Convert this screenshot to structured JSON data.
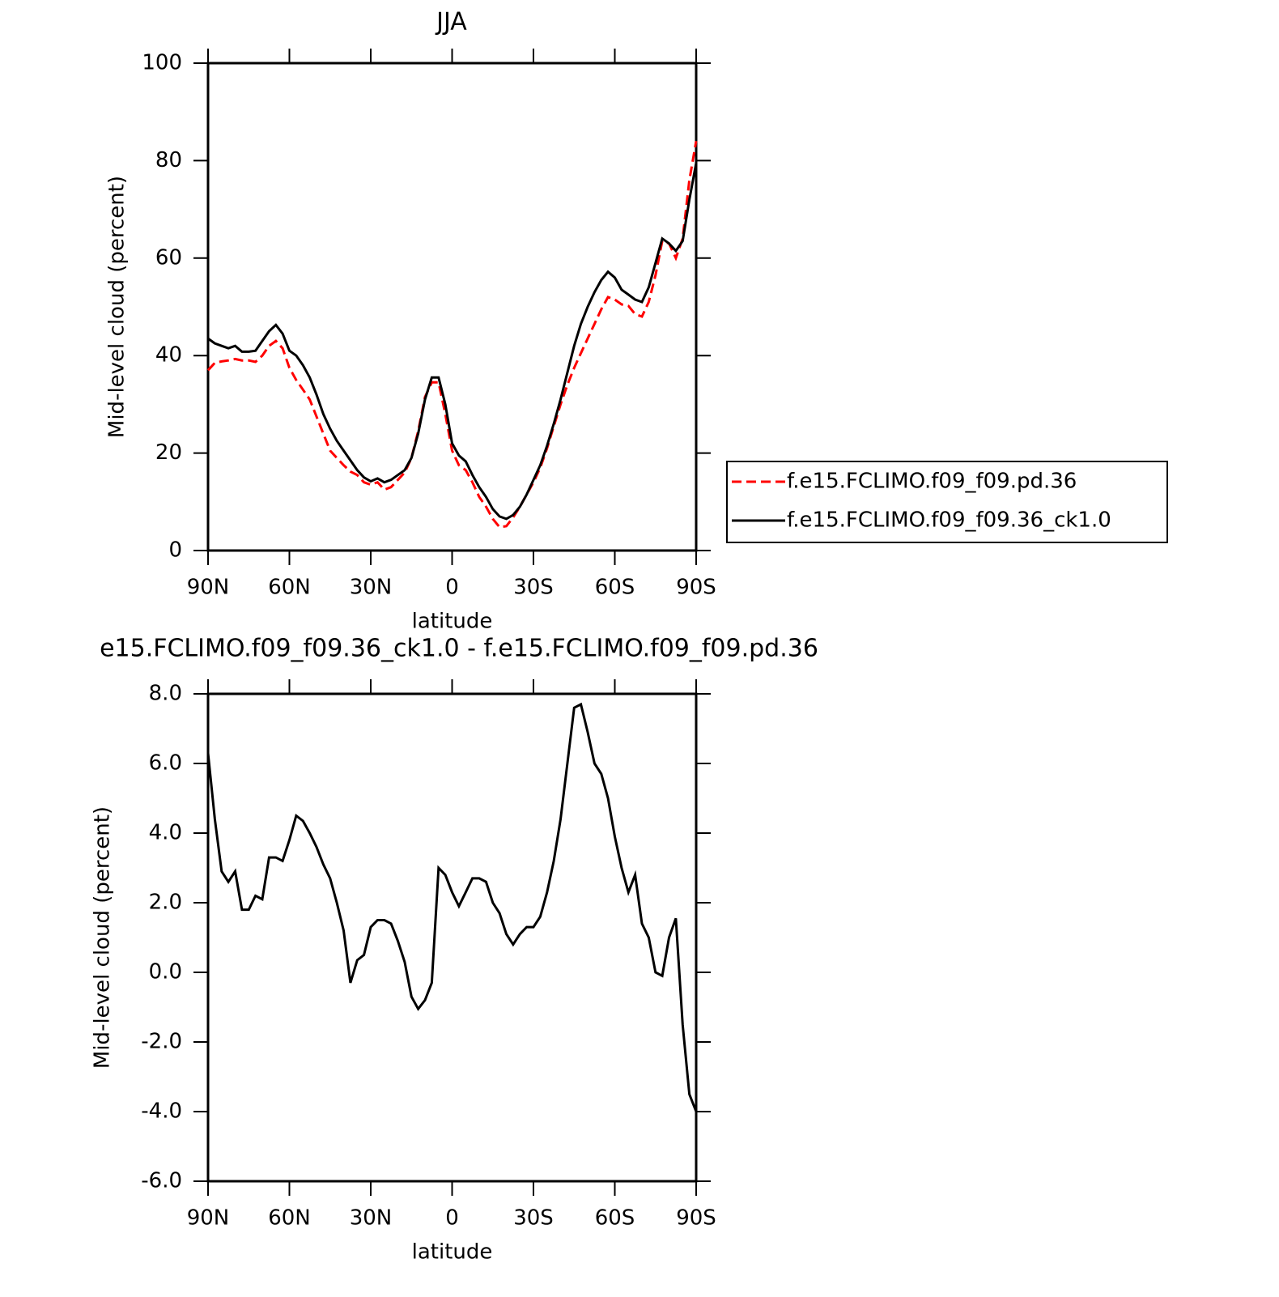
{
  "chart_data": [
    {
      "type": "line",
      "title": "JJA",
      "xlabel": "latitude",
      "ylabel": "Mid-level cloud (percent)",
      "x": [
        90,
        87.5,
        85,
        82.5,
        80,
        77.5,
        75,
        72.5,
        70,
        67.5,
        65,
        62.5,
        60,
        57.5,
        55,
        52.5,
        50,
        47.5,
        45,
        42.5,
        40,
        37.5,
        35,
        32.5,
        30,
        27.5,
        25,
        22.5,
        20,
        17.5,
        15,
        12.5,
        10,
        7.5,
        5,
        2.5,
        0,
        -2.5,
        -5,
        -7.5,
        -10,
        -12.5,
        -15,
        -17.5,
        -20,
        -22.5,
        -25,
        -27.5,
        -30,
        -32.5,
        -35,
        -37.5,
        -40,
        -42.5,
        -45,
        -47.5,
        -50,
        -52.5,
        -55,
        -57.5,
        -60,
        -62.5,
        -65,
        -67.5,
        -70,
        -72.5,
        -75,
        -77.5,
        -80,
        -82.5,
        -85,
        -87.5,
        -90
      ],
      "series": [
        {
          "name": "f.e15.FCLIMO.f09_f09.pd.36",
          "color": "#ff0000",
          "line_style": "dashed",
          "values": [
            37,
            38.5,
            38.8,
            39,
            39.3,
            39,
            39,
            38.7,
            40,
            42,
            43,
            41.5,
            37.5,
            35,
            33,
            31,
            27.5,
            24,
            20.5,
            19,
            17.5,
            16.2,
            15.5,
            14,
            13.5,
            14,
            12.5,
            13,
            14.5,
            16,
            19,
            24.5,
            31.5,
            34.5,
            34.5,
            28,
            20.5,
            17.5,
            16.5,
            14,
            11,
            9,
            6.5,
            4.8,
            5,
            6.8,
            9,
            11.5,
            14,
            17,
            21,
            25.5,
            30,
            34,
            37.5,
            40.5,
            43.5,
            46.5,
            49.5,
            52,
            51.5,
            50.5,
            50.2,
            48.5,
            48,
            51,
            56.5,
            63.5,
            63,
            60,
            64,
            76,
            84
          ]
        },
        {
          "name": "f.e15.FCLIMO.f09_f09.36_ck1.0",
          "color": "#000000",
          "line_style": "solid",
          "values": [
            43.5,
            42.5,
            42,
            41.5,
            42,
            40.8,
            40.8,
            41,
            43,
            45,
            46.3,
            44.5,
            41,
            40,
            38,
            35.5,
            32,
            28,
            25,
            22.5,
            20.5,
            18.5,
            16.5,
            15,
            14.2,
            14.8,
            14,
            14.5,
            15.5,
            16.5,
            19,
            24,
            31,
            35.5,
            35.5,
            30,
            22,
            19.5,
            18.3,
            15.5,
            13,
            11,
            8.5,
            7,
            6.5,
            7.3,
            9,
            11.5,
            14.5,
            17.5,
            21.5,
            26,
            31,
            36.5,
            42,
            46.5,
            50,
            53,
            55.5,
            57.2,
            56,
            53.5,
            52.5,
            51.5,
            51,
            54,
            59,
            64,
            63,
            61.5,
            63.5,
            72,
            79.5
          ]
        }
      ],
      "xlim": [
        90,
        -90
      ],
      "xticks": [
        {
          "value": 90,
          "label": "90N"
        },
        {
          "value": 60,
          "label": "60N"
        },
        {
          "value": 30,
          "label": "30N"
        },
        0,
        {
          "value": -30,
          "label": "30S"
        },
        {
          "value": -60,
          "label": "60S"
        },
        {
          "value": -90,
          "label": "90S"
        }
      ],
      "ylim": [
        0,
        100
      ],
      "yticks": [
        0,
        20,
        40,
        60,
        80,
        100
      ],
      "legend": "right"
    },
    {
      "type": "line",
      "title": "e15.FCLIMO.f09_f09.36_ck1.0 - f.e15.FCLIMO.f09_f09.pd.36",
      "xlabel": "latitude",
      "ylabel": "Mid-level cloud (percent)",
      "x": [
        90,
        87.5,
        85,
        82.5,
        80,
        77.5,
        75,
        72.5,
        70,
        67.5,
        65,
        62.5,
        60,
        57.5,
        55,
        52.5,
        50,
        47.5,
        45,
        42.5,
        40,
        37.5,
        35,
        32.5,
        30,
        27.5,
        25,
        22.5,
        20,
        17.5,
        15,
        12.5,
        10,
        7.5,
        5,
        2.5,
        0,
        -2.5,
        -5,
        -7.5,
        -10,
        -12.5,
        -15,
        -17.5,
        -20,
        -22.5,
        -25,
        -27.5,
        -30,
        -32.5,
        -35,
        -37.5,
        -40,
        -42.5,
        -45,
        -47.5,
        -50,
        -52.5,
        -55,
        -57.5,
        -60,
        -62.5,
        -65,
        -67.5,
        -70,
        -72.5,
        -75,
        -77.5,
        -80,
        -82.5,
        -85,
        -87.5,
        -90
      ],
      "values": [
        6.3,
        4.4,
        2.9,
        2.6,
        2.9,
        1.8,
        1.8,
        2.2,
        2.1,
        3.3,
        3.3,
        3.2,
        3.8,
        4.5,
        4.35,
        4.0,
        3.6,
        3.1,
        2.7,
        2.0,
        1.2,
        -0.3,
        0.35,
        0.5,
        1.3,
        1.5,
        1.5,
        1.4,
        0.9,
        0.3,
        -0.7,
        -1.05,
        -0.8,
        -0.3,
        3.0,
        2.8,
        2.3,
        1.9,
        2.3,
        2.7,
        2.7,
        2.6,
        2.0,
        1.7,
        1.1,
        0.8,
        1.1,
        1.3,
        1.3,
        1.6,
        2.3,
        3.2,
        4.4,
        6.0,
        7.6,
        7.7,
        6.9,
        6.0,
        5.7,
        5.0,
        3.9,
        3.0,
        2.3,
        2.8,
        1.4,
        1.0,
        0.0,
        -0.1,
        1.0,
        1.55,
        -1.5,
        -3.5,
        -4.0
      ],
      "color": "#000000",
      "xlim": [
        90,
        -90
      ],
      "xticks": [
        {
          "value": 90,
          "label": "90N"
        },
        {
          "value": 60,
          "label": "60N"
        },
        {
          "value": 30,
          "label": "30N"
        },
        0,
        {
          "value": -30,
          "label": "30S"
        },
        {
          "value": -60,
          "label": "60S"
        },
        {
          "value": -90,
          "label": "90S"
        }
      ],
      "ylim": [
        -6,
        8
      ],
      "yticks": [
        {
          "value": -6,
          "label": "-6.0"
        },
        {
          "value": -4,
          "label": "-4.0"
        },
        {
          "value": -2,
          "label": "-2.0"
        },
        {
          "value": 0,
          "label": "0.0"
        },
        {
          "value": 2,
          "label": "2.0"
        },
        {
          "value": 4,
          "label": "4.0"
        },
        {
          "value": 6,
          "label": "6.0"
        },
        {
          "value": 8,
          "label": "8.0"
        }
      ]
    }
  ]
}
